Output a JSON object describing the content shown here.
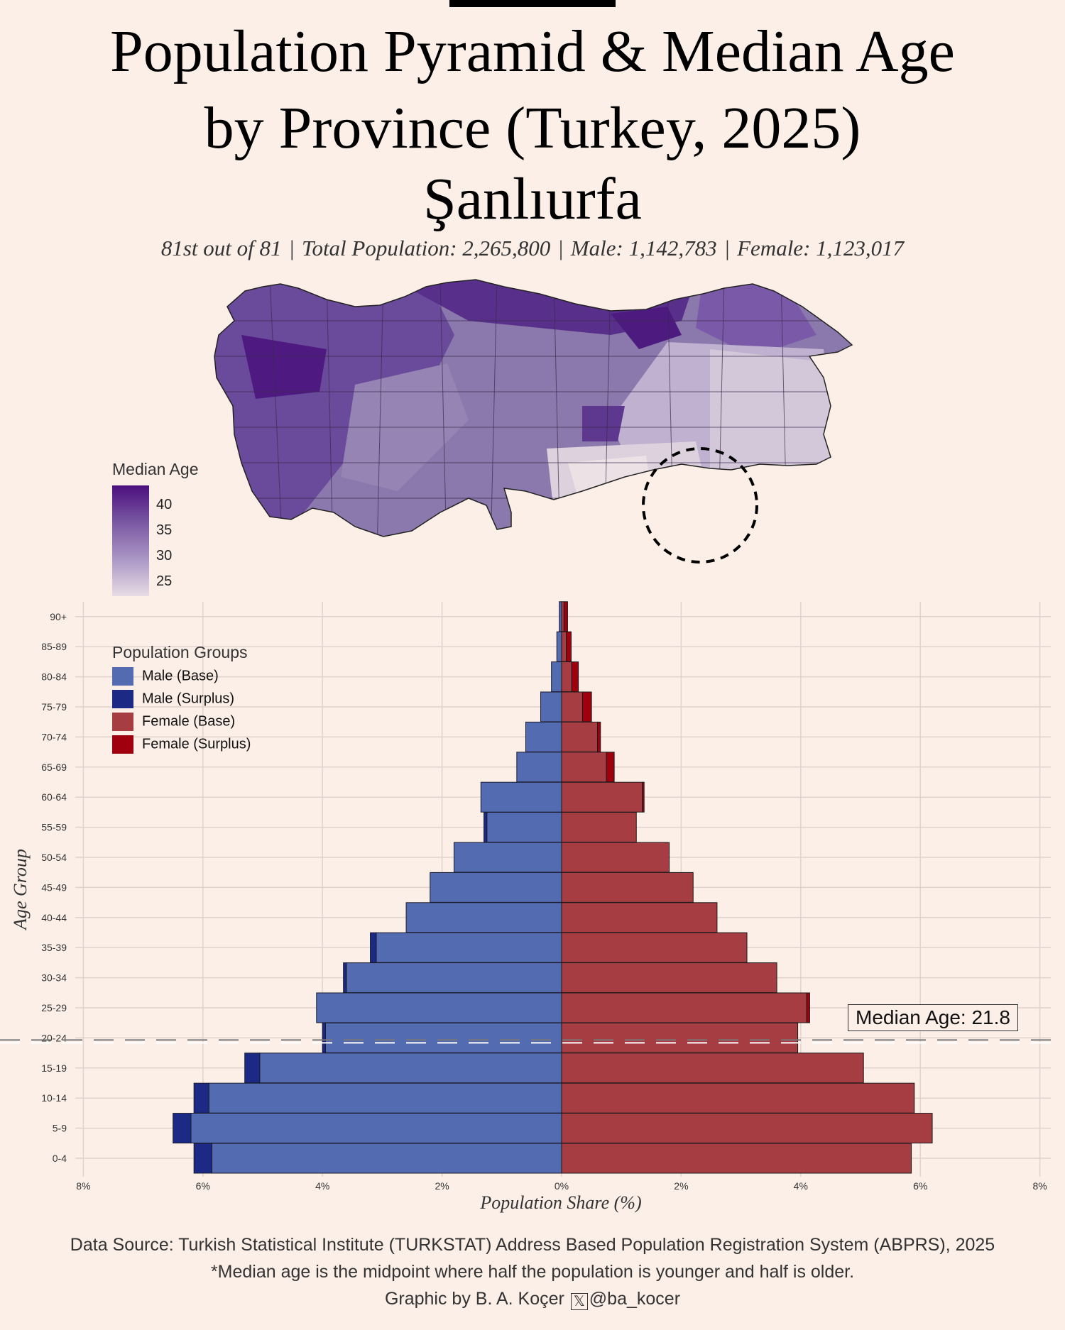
{
  "header": {
    "title_line1": "Population Pyramid & Median Age",
    "title_line2": "by Province (Turkey, 2025)",
    "province": "Şanlıurfa",
    "rank": "81st out of 81",
    "total": "Total Population: 2,265,800",
    "male": "Male: 1,142,783",
    "female": "Female: 1,123,017",
    "separator": "|"
  },
  "map_legend": {
    "title": "Median Age",
    "ticks": [
      "40",
      "35",
      "30",
      "25"
    ]
  },
  "groups_legend": {
    "title": "Population Groups",
    "items": [
      {
        "label": "Male (Base)",
        "color": "#536bb0"
      },
      {
        "label": "Male (Surplus)",
        "color": "#1c2a86"
      },
      {
        "label": "Female (Base)",
        "color": "#a63d43"
      },
      {
        "label": "Female (Surplus)",
        "color": "#a0000d"
      }
    ]
  },
  "median_label": "Median Age: 21.8",
  "colors": {
    "male_base": "#536bb0",
    "male_surplus": "#1c2a86",
    "female_base": "#a63d43",
    "female_surplus": "#a0000d",
    "map_high": "#4b0f7d",
    "map_low": "#ece2e6"
  },
  "chart_data": {
    "type": "bar",
    "orientation": "horizontal",
    "xlabel": "Population Share (%)",
    "ylabel": "Age Group",
    "xlim": [
      -8,
      8
    ],
    "x_ticks": [
      "8%",
      "6%",
      "4%",
      "2%",
      "0%",
      "2%",
      "4%",
      "6%",
      "8%"
    ],
    "categories": [
      "0-4",
      "5-9",
      "10-14",
      "15-19",
      "20-24",
      "25-29",
      "30-34",
      "35-39",
      "40-44",
      "45-49",
      "50-54",
      "55-59",
      "60-64",
      "65-69",
      "70-74",
      "75-79",
      "80-84",
      "85-89",
      "90+"
    ],
    "series": [
      {
        "name": "Male",
        "values": [
          6.15,
          6.5,
          6.15,
          5.3,
          4.0,
          4.1,
          3.65,
          3.2,
          2.6,
          2.2,
          1.8,
          1.3,
          1.35,
          0.75,
          0.6,
          0.35,
          0.17,
          0.08,
          0.04
        ]
      },
      {
        "name": "Female",
        "values": [
          5.85,
          6.2,
          5.9,
          5.05,
          3.95,
          4.15,
          3.6,
          3.1,
          2.6,
          2.2,
          1.8,
          1.25,
          1.38,
          0.88,
          0.65,
          0.5,
          0.28,
          0.16,
          0.1
        ]
      }
    ],
    "median_age": 21.8,
    "legend_position": "top-left",
    "grid": true
  }
}
